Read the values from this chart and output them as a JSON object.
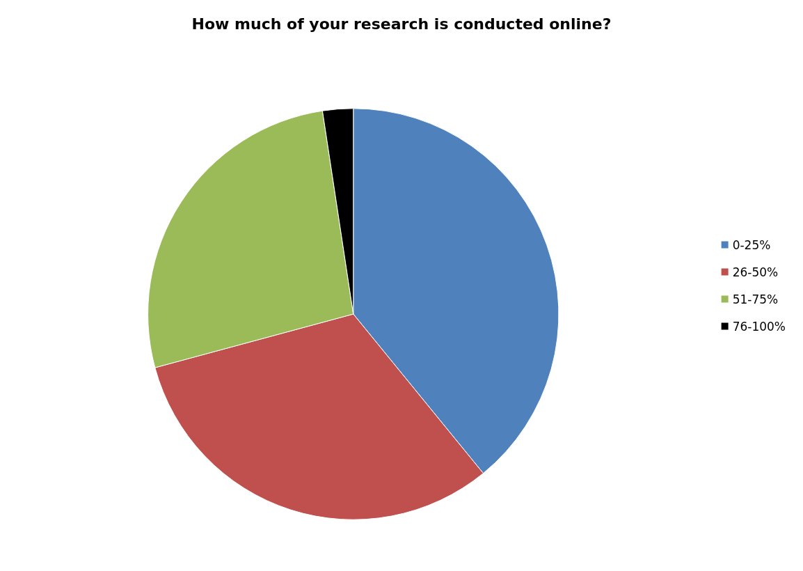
{
  "chart_data": {
    "type": "pie",
    "title": "How much of your research is conducted online?",
    "categories": [
      "0-25%",
      "26-50%",
      "51-75%",
      "76-100%"
    ],
    "values": [
      39.1,
      31.7,
      26.8,
      2.4
    ],
    "colors": [
      "#4f81bd",
      "#c0504d",
      "#9bbb59",
      "#000000"
    ],
    "legend": "right"
  }
}
